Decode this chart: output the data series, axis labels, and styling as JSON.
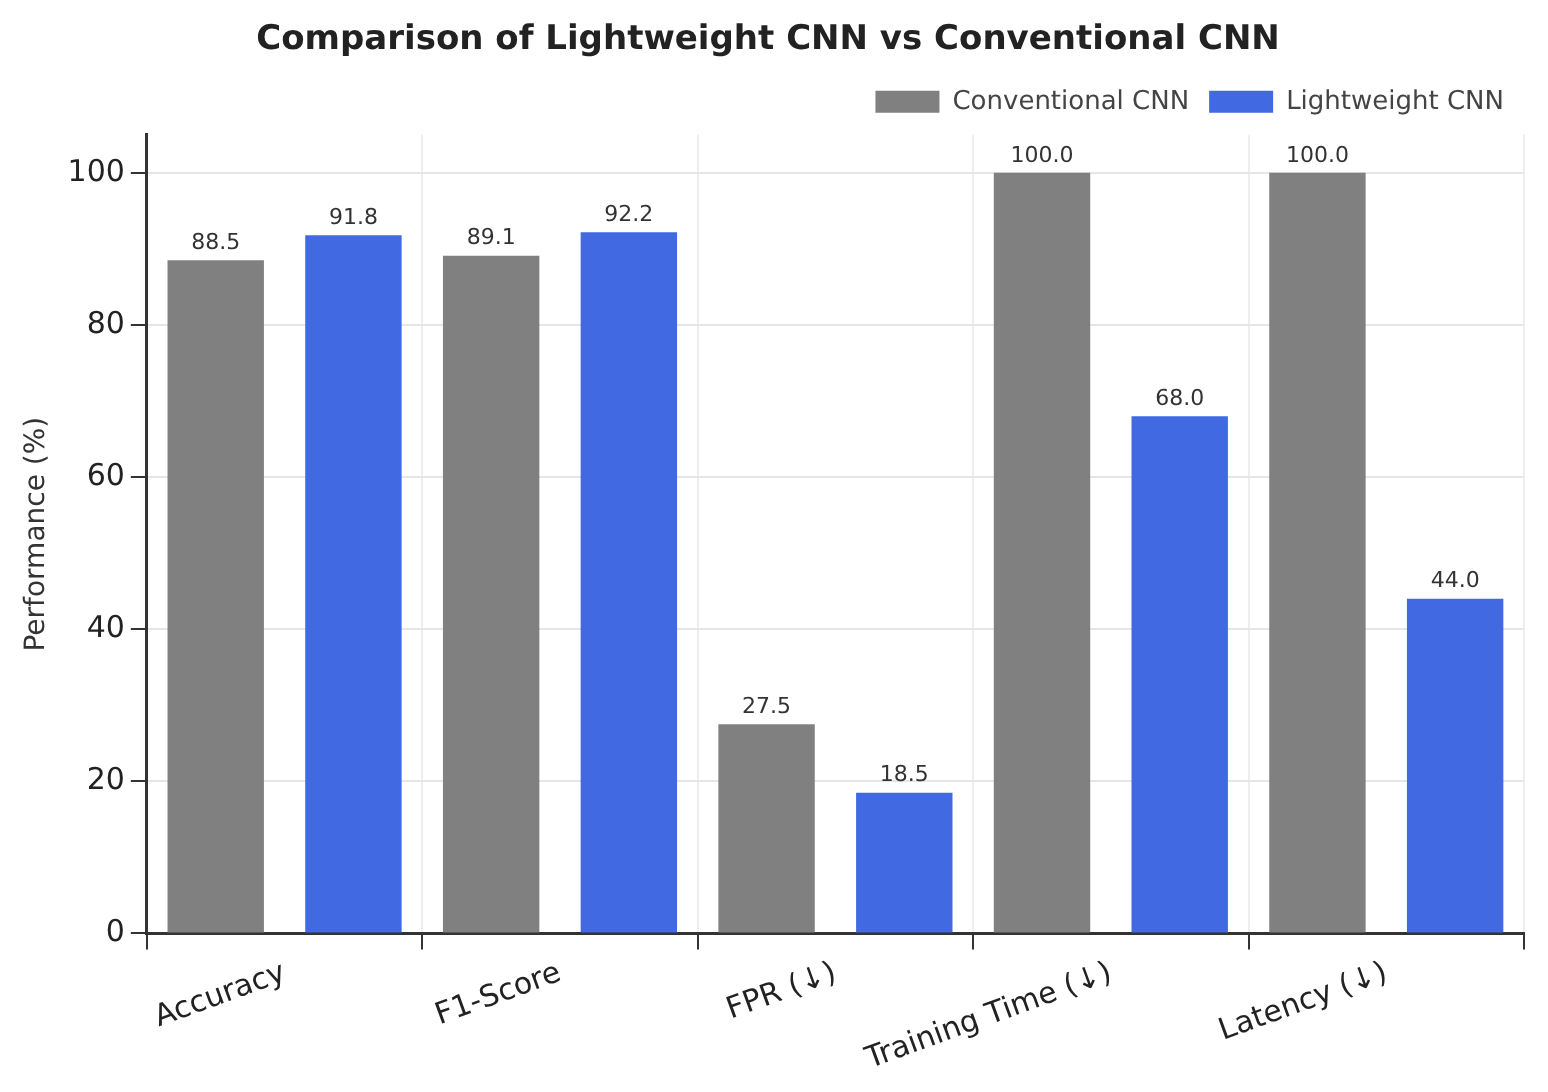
{
  "chart_data": {
    "type": "bar",
    "title": "Comparison of Lightweight CNN vs Conventional CNN",
    "ylabel": "Performance (%)",
    "categories": [
      "Accuracy",
      "F1-Score",
      "FPR (↓)",
      "Training Time (↓)",
      "Latency (↓)"
    ],
    "series": [
      {
        "name": "Conventional CNN",
        "color": "#808080",
        "values": [
          88.5,
          89.1,
          27.5,
          100.0,
          100.0
        ],
        "value_labels": [
          "88.5",
          "89.1",
          "27.5",
          "100.0",
          "100.0"
        ]
      },
      {
        "name": "Lightweight CNN",
        "color": "#4169e1",
        "values": [
          91.8,
          92.2,
          18.5,
          68.0,
          44.0
        ],
        "value_labels": [
          "91.8",
          "92.2",
          "18.5",
          "68.0",
          "44.0"
        ]
      }
    ],
    "ylim": [
      0,
      105
    ],
    "yticks": [
      0,
      20,
      40,
      60,
      80,
      100
    ],
    "grid": true,
    "legend": "top right"
  }
}
